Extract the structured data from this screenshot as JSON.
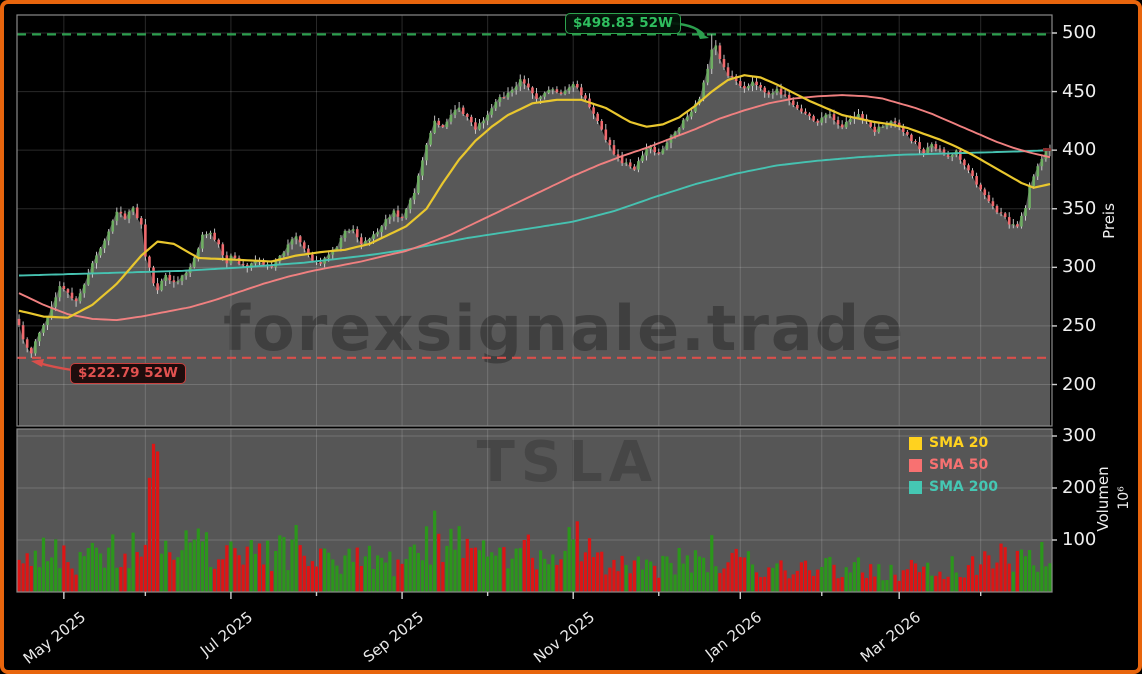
{
  "watermarks": {
    "brand": "forexsignale.trade",
    "symbol": "TSLA"
  },
  "annotations": {
    "high": {
      "label": "$498.83 52W",
      "value": 498.83,
      "day": 170,
      "color": "#2fbf5f"
    },
    "low": {
      "label": "$222.79 52W",
      "value": 222.79,
      "day": 3,
      "color": "#e25250"
    }
  },
  "price_axis": {
    "title": "Preis",
    "ticks": [
      200,
      250,
      300,
      350,
      400,
      450,
      500
    ]
  },
  "volume_axis": {
    "title": "Volumen",
    "unit": "10⁶",
    "ticks": [
      100,
      200,
      300
    ]
  },
  "time_axis": {
    "ticks": [
      {
        "day": 11,
        "label": "May 2025"
      },
      {
        "day": 31,
        "label": ""
      },
      {
        "day": 52,
        "label": "Jul 2025"
      },
      {
        "day": 73,
        "label": ""
      },
      {
        "day": 94,
        "label": "Sep 2025"
      },
      {
        "day": 115,
        "label": ""
      },
      {
        "day": 136,
        "label": "Nov 2025"
      },
      {
        "day": 157,
        "label": ""
      },
      {
        "day": 177,
        "label": "Jan 2026"
      },
      {
        "day": 197,
        "label": ""
      },
      {
        "day": 216,
        "label": "Mar 2026"
      },
      {
        "day": 236,
        "label": ""
      }
    ]
  },
  "legend": [
    {
      "label": "SMA 20",
      "color": "#ffd21f"
    },
    {
      "label": "SMA 50",
      "color": "#f87171"
    },
    {
      "label": "SMA 200",
      "color": "#45c7b3"
    }
  ],
  "colors": {
    "frame_border": "#e8650d",
    "background": "#000000",
    "area_fill": "#585858",
    "volume_panel": "#565656",
    "gridline": "rgba(255,255,255,0.16)",
    "spine": "#8a8a8a",
    "tick": "#cfcfcf",
    "candle_up": "#6fae63",
    "candle_down": "#ee6a6e",
    "wick": "#d6d6d6",
    "volume_up": "#2c961c",
    "volume_down": "#dd1515",
    "sma20": "#e9c72e",
    "sma50": "#f08080",
    "sma200": "#46c2b1",
    "high_line": "#2c9e4e",
    "low_line": "#d94f4b",
    "last_price_marker": "#8c2f2f"
  },
  "chart_data": {
    "type": "candlestick",
    "symbol": "TSLA",
    "n_days": 254,
    "seed": 5,
    "high_52w": 498.83,
    "low_52w": 222.79,
    "high_52w_day": 170,
    "low_52w_day": 3,
    "volume_spike": {
      "day": 33,
      "value": 285
    },
    "price_view_bottom": 166,
    "close_keypoints": [
      [
        0,
        250
      ],
      [
        2,
        230
      ],
      [
        3,
        226
      ],
      [
        5,
        245
      ],
      [
        7,
        258
      ],
      [
        10,
        284
      ],
      [
        12,
        278
      ],
      [
        14,
        270
      ],
      [
        17,
        295
      ],
      [
        20,
        316
      ],
      [
        22,
        332
      ],
      [
        24,
        348
      ],
      [
        26,
        342
      ],
      [
        28,
        350
      ],
      [
        30,
        336
      ],
      [
        31,
        310
      ],
      [
        33,
        288
      ],
      [
        34,
        280
      ],
      [
        36,
        295
      ],
      [
        38,
        286
      ],
      [
        40,
        292
      ],
      [
        42,
        300
      ],
      [
        44,
        316
      ],
      [
        45,
        328
      ],
      [
        47,
        330
      ],
      [
        49,
        318
      ],
      [
        51,
        305
      ],
      [
        52,
        310
      ],
      [
        54,
        303
      ],
      [
        56,
        298
      ],
      [
        58,
        308
      ],
      [
        60,
        303
      ],
      [
        62,
        300
      ],
      [
        64,
        310
      ],
      [
        66,
        318
      ],
      [
        68,
        328
      ],
      [
        70,
        315
      ],
      [
        72,
        306
      ],
      [
        74,
        304
      ],
      [
        76,
        312
      ],
      [
        78,
        318
      ],
      [
        80,
        330
      ],
      [
        82,
        333
      ],
      [
        84,
        320
      ],
      [
        86,
        326
      ],
      [
        88,
        331
      ],
      [
        90,
        340
      ],
      [
        92,
        347
      ],
      [
        94,
        342
      ],
      [
        95,
        348
      ],
      [
        97,
        365
      ],
      [
        99,
        392
      ],
      [
        101,
        415
      ],
      [
        102,
        424
      ],
      [
        104,
        420
      ],
      [
        106,
        430
      ],
      [
        108,
        436
      ],
      [
        110,
        428
      ],
      [
        112,
        418
      ],
      [
        114,
        426
      ],
      [
        116,
        436
      ],
      [
        118,
        445
      ],
      [
        120,
        448
      ],
      [
        122,
        455
      ],
      [
        123,
        460
      ],
      [
        125,
        452
      ],
      [
        127,
        444
      ],
      [
        129,
        450
      ],
      [
        131,
        452
      ],
      [
        133,
        447
      ],
      [
        134,
        452
      ],
      [
        136,
        457
      ],
      [
        138,
        448
      ],
      [
        140,
        438
      ],
      [
        142,
        425
      ],
      [
        144,
        410
      ],
      [
        146,
        398
      ],
      [
        148,
        390
      ],
      [
        150,
        386
      ],
      [
        151,
        384
      ],
      [
        153,
        396
      ],
      [
        155,
        404
      ],
      [
        157,
        396
      ],
      [
        159,
        408
      ],
      [
        161,
        416
      ],
      [
        163,
        424
      ],
      [
        165,
        432
      ],
      [
        167,
        444
      ],
      [
        169,
        470
      ],
      [
        170,
        487
      ],
      [
        171,
        490
      ],
      [
        172,
        478
      ],
      [
        174,
        465
      ],
      [
        176,
        458
      ],
      [
        178,
        452
      ],
      [
        180,
        460
      ],
      [
        182,
        452
      ],
      [
        184,
        446
      ],
      [
        186,
        452
      ],
      [
        188,
        446
      ],
      [
        190,
        440
      ],
      [
        192,
        434
      ],
      [
        194,
        428
      ],
      [
        196,
        424
      ],
      [
        198,
        432
      ],
      [
        200,
        426
      ],
      [
        202,
        420
      ],
      [
        204,
        427
      ],
      [
        206,
        431
      ],
      [
        208,
        424
      ],
      [
        210,
        417
      ],
      [
        212,
        421
      ],
      [
        214,
        426
      ],
      [
        216,
        419
      ],
      [
        218,
        412
      ],
      [
        220,
        406
      ],
      [
        222,
        399
      ],
      [
        224,
        406
      ],
      [
        226,
        399
      ],
      [
        228,
        393
      ],
      [
        230,
        398
      ],
      [
        232,
        388
      ],
      [
        234,
        377
      ],
      [
        236,
        366
      ],
      [
        238,
        356
      ],
      [
        240,
        348
      ],
      [
        242,
        342
      ],
      [
        243,
        338
      ],
      [
        245,
        336
      ],
      [
        247,
        350
      ],
      [
        248,
        368
      ],
      [
        250,
        386
      ],
      [
        252,
        398
      ],
      [
        253,
        401
      ]
    ],
    "sma20_keypoints": [
      [
        0,
        263
      ],
      [
        6,
        258
      ],
      [
        12,
        257
      ],
      [
        18,
        268
      ],
      [
        24,
        286
      ],
      [
        30,
        310
      ],
      [
        34,
        322
      ],
      [
        38,
        320
      ],
      [
        44,
        308
      ],
      [
        50,
        307
      ],
      [
        56,
        306
      ],
      [
        62,
        305
      ],
      [
        68,
        310
      ],
      [
        74,
        313
      ],
      [
        80,
        315
      ],
      [
        86,
        320
      ],
      [
        92,
        330
      ],
      [
        95,
        335
      ],
      [
        100,
        350
      ],
      [
        104,
        372
      ],
      [
        108,
        392
      ],
      [
        112,
        408
      ],
      [
        116,
        420
      ],
      [
        120,
        430
      ],
      [
        126,
        440
      ],
      [
        132,
        443
      ],
      [
        138,
        443
      ],
      [
        144,
        436
      ],
      [
        150,
        424
      ],
      [
        154,
        420
      ],
      [
        158,
        422
      ],
      [
        162,
        428
      ],
      [
        166,
        438
      ],
      [
        170,
        450
      ],
      [
        174,
        460
      ],
      [
        178,
        464
      ],
      [
        182,
        462
      ],
      [
        186,
        456
      ],
      [
        190,
        449
      ],
      [
        194,
        442
      ],
      [
        198,
        436
      ],
      [
        202,
        430
      ],
      [
        206,
        427
      ],
      [
        210,
        424
      ],
      [
        214,
        422
      ],
      [
        218,
        419
      ],
      [
        222,
        414
      ],
      [
        226,
        409
      ],
      [
        230,
        403
      ],
      [
        234,
        396
      ],
      [
        238,
        388
      ],
      [
        242,
        380
      ],
      [
        246,
        372
      ],
      [
        249,
        368
      ],
      [
        253,
        371
      ]
    ],
    "sma50_keypoints": [
      [
        0,
        278
      ],
      [
        6,
        268
      ],
      [
        12,
        260
      ],
      [
        18,
        256
      ],
      [
        24,
        255
      ],
      [
        30,
        258
      ],
      [
        36,
        262
      ],
      [
        42,
        266
      ],
      [
        48,
        272
      ],
      [
        54,
        279
      ],
      [
        60,
        286
      ],
      [
        66,
        292
      ],
      [
        72,
        297
      ],
      [
        78,
        301
      ],
      [
        84,
        305
      ],
      [
        90,
        310
      ],
      [
        95,
        314
      ],
      [
        100,
        320
      ],
      [
        106,
        328
      ],
      [
        112,
        338
      ],
      [
        118,
        348
      ],
      [
        124,
        358
      ],
      [
        130,
        368
      ],
      [
        136,
        378
      ],
      [
        142,
        387
      ],
      [
        148,
        395
      ],
      [
        154,
        402
      ],
      [
        160,
        410
      ],
      [
        166,
        418
      ],
      [
        172,
        427
      ],
      [
        178,
        434
      ],
      [
        184,
        440
      ],
      [
        190,
        444
      ],
      [
        196,
        446
      ],
      [
        202,
        447
      ],
      [
        208,
        446
      ],
      [
        212,
        444
      ],
      [
        216,
        440
      ],
      [
        220,
        436
      ],
      [
        224,
        431
      ],
      [
        228,
        425
      ],
      [
        232,
        419
      ],
      [
        236,
        413
      ],
      [
        240,
        407
      ],
      [
        244,
        402
      ],
      [
        248,
        398
      ],
      [
        253,
        394
      ]
    ],
    "sma200_keypoints": [
      [
        0,
        293
      ],
      [
        20,
        295
      ],
      [
        40,
        297
      ],
      [
        55,
        300
      ],
      [
        70,
        304
      ],
      [
        85,
        310
      ],
      [
        95,
        315
      ],
      [
        110,
        325
      ],
      [
        125,
        333
      ],
      [
        136,
        339
      ],
      [
        146,
        348
      ],
      [
        156,
        360
      ],
      [
        166,
        371
      ],
      [
        176,
        380
      ],
      [
        186,
        387
      ],
      [
        196,
        391
      ],
      [
        206,
        394
      ],
      [
        216,
        396
      ],
      [
        226,
        397
      ],
      [
        236,
        398
      ],
      [
        246,
        399
      ],
      [
        253,
        400
      ]
    ],
    "volume_keypoints": [
      [
        0,
        55
      ],
      [
        8,
        75
      ],
      [
        14,
        65
      ],
      [
        20,
        72
      ],
      [
        26,
        80
      ],
      [
        31,
        95
      ],
      [
        33,
        285
      ],
      [
        35,
        110
      ],
      [
        40,
        78
      ],
      [
        44,
        128
      ],
      [
        48,
        70
      ],
      [
        55,
        72
      ],
      [
        62,
        66
      ],
      [
        68,
        88
      ],
      [
        75,
        60
      ],
      [
        82,
        70
      ],
      [
        88,
        58
      ],
      [
        94,
        52
      ],
      [
        97,
        68
      ],
      [
        100,
        95
      ],
      [
        103,
        115
      ],
      [
        107,
        78
      ],
      [
        110,
        100
      ],
      [
        114,
        68
      ],
      [
        118,
        80
      ],
      [
        123,
        88
      ],
      [
        128,
        65
      ],
      [
        132,
        60
      ],
      [
        136,
        110
      ],
      [
        140,
        72
      ],
      [
        145,
        62
      ],
      [
        150,
        56
      ],
      [
        155,
        50
      ],
      [
        160,
        56
      ],
      [
        164,
        62
      ],
      [
        168,
        70
      ],
      [
        170,
        78
      ],
      [
        173,
        66
      ],
      [
        177,
        58
      ],
      [
        181,
        48
      ],
      [
        185,
        44
      ],
      [
        189,
        52
      ],
      [
        193,
        56
      ],
      [
        197,
        46
      ],
      [
        201,
        50
      ],
      [
        205,
        46
      ],
      [
        209,
        42
      ],
      [
        213,
        44
      ],
      [
        217,
        40
      ],
      [
        221,
        44
      ],
      [
        225,
        40
      ],
      [
        229,
        46
      ],
      [
        233,
        50
      ],
      [
        237,
        54
      ],
      [
        240,
        58
      ],
      [
        243,
        75
      ],
      [
        246,
        62
      ],
      [
        249,
        56
      ],
      [
        251,
        66
      ],
      [
        253,
        72
      ]
    ]
  }
}
